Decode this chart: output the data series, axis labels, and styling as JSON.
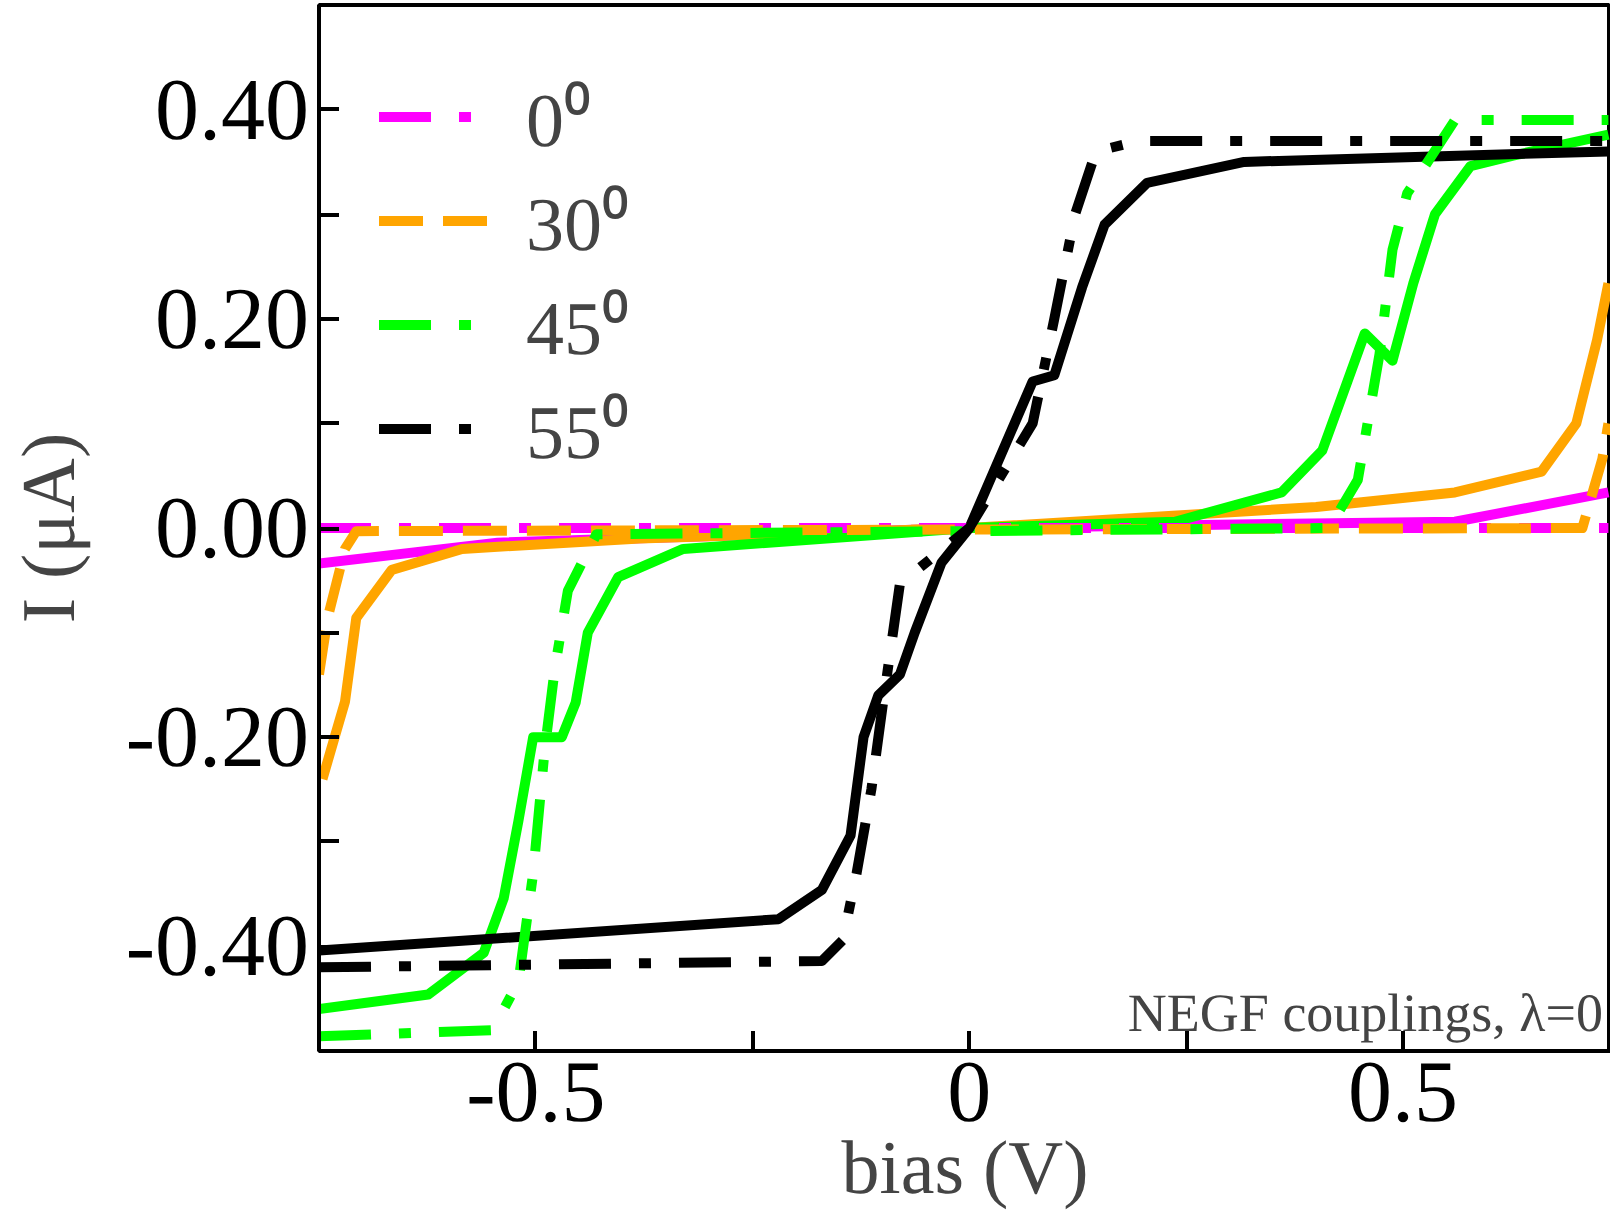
{
  "chart_data": {
    "type": "line",
    "xlabel": "bias (V)",
    "ylabel": "I (μA)",
    "xlim": [
      -0.75,
      0.74
    ],
    "ylim": [
      -0.5,
      0.5
    ],
    "xticks": [
      {
        "value": -0.75,
        "label": null
      },
      -0.5,
      {
        "value": -0.25,
        "label": null
      },
      0,
      {
        "value": 0.25,
        "label": null
      },
      0.5
    ],
    "yticks": [
      {
        "value": -0.4,
        "label": "-0.40"
      },
      {
        "value": -0.3,
        "label": null
      },
      {
        "value": -0.2,
        "label": "-0.20"
      },
      {
        "value": -0.1,
        "label": null
      },
      {
        "value": 0,
        "label": "0.00"
      },
      {
        "value": 0.1,
        "label": null
      },
      {
        "value": 0.2,
        "label": "0.20"
      },
      {
        "value": 0.3,
        "label": null
      },
      {
        "value": 0.4,
        "label": "0.40"
      }
    ],
    "grid": false,
    "legend": "top left",
    "marker": "none",
    "annotations": [
      "NEGF couplings, λ=0"
    ],
    "series": [
      {
        "color": "#ff00ff",
        "line_style": "solid",
        "x": [
          -0.75,
          -0.544,
          0,
          0.56,
          0.737
        ],
        "values": [
          -0.034,
          -0.014,
          0,
          0.006,
          0.034
        ]
      },
      {
        "color": "#ffa500",
        "line_style": "solid",
        "x": [
          -0.746,
          -0.72,
          -0.707,
          -0.666,
          -0.585,
          -0.38,
          0,
          0.4,
          0.56,
          0.66,
          0.7,
          0.724,
          0.737
        ],
        "values": [
          -0.24,
          -0.166,
          -0.086,
          -0.04,
          -0.02,
          -0.01,
          0,
          0.02,
          0.034,
          0.054,
          0.1,
          0.18,
          0.234
        ]
      },
      {
        "color": "#00ff00",
        "line_style": "solid",
        "x": [
          -0.75,
          -0.624,
          -0.56,
          -0.537,
          -0.52,
          -0.503,
          -0.47,
          -0.454,
          -0.44,
          -0.405,
          -0.33,
          0,
          0.237,
          0.36,
          0.407,
          0.436,
          0.456,
          0.488,
          0.512,
          0.537,
          0.578,
          0.627,
          0.737
        ],
        "values": [
          -0.46,
          -0.446,
          -0.406,
          -0.354,
          -0.28,
          -0.2,
          -0.2,
          -0.167,
          -0.1,
          -0.047,
          -0.02,
          0,
          0.006,
          0.034,
          0.074,
          0.14,
          0.186,
          0.16,
          0.234,
          0.3,
          0.346,
          0.356,
          0.376
        ]
      },
      {
        "color": "#000000",
        "line_style": "solid",
        "x": [
          -0.75,
          -0.22,
          -0.17,
          -0.137,
          -0.122,
          -0.105,
          -0.08,
          -0.063,
          -0.032,
          0,
          0.073,
          0.098,
          0.13,
          0.156,
          0.205,
          0.317,
          0.737
        ],
        "values": [
          -0.404,
          -0.374,
          -0.346,
          -0.294,
          -0.2,
          -0.16,
          -0.14,
          -0.1,
          -0.033,
          0,
          0.14,
          0.146,
          0.23,
          0.29,
          0.33,
          0.35,
          0.36
        ]
      },
      {
        "name": "0⁰",
        "color": "#ff00ff",
        "line_style": "dashdot",
        "x": [
          -0.75,
          0.737
        ],
        "values": [
          0,
          0
        ]
      },
      {
        "name": "30⁰",
        "color": "#ffa500",
        "line_style": "dashed",
        "x": [
          -0.75,
          -0.74,
          -0.72,
          -0.707,
          0.707,
          0.73,
          0.737
        ],
        "values": [
          -0.14,
          -0.086,
          -0.02,
          -0.003,
          0,
          0.066,
          0.1
        ]
      },
      {
        "name": "45⁰",
        "color": "#00ff00",
        "line_style": "dashdot",
        "x": [
          -0.75,
          -0.55,
          -0.52,
          -0.503,
          -0.49,
          -0.478,
          -0.463,
          -0.43,
          0.415,
          0.448,
          0.473,
          0.488,
          0.505,
          0.56,
          0.737
        ],
        "values": [
          -0.486,
          -0.48,
          -0.434,
          -0.33,
          -0.214,
          -0.134,
          -0.06,
          -0.006,
          0,
          0.046,
          0.166,
          0.266,
          0.32,
          0.39,
          0.39
        ]
      },
      {
        "name": "55⁰",
        "color": "#000000",
        "line_style": "dashdot",
        "x": [
          -0.75,
          -0.17,
          -0.146,
          -0.13,
          -0.113,
          -0.1,
          -0.08,
          0,
          0.073,
          0.098,
          0.122,
          0.146,
          0.195,
          0.737
        ],
        "values": [
          -0.42,
          -0.414,
          -0.394,
          -0.33,
          -0.25,
          -0.17,
          -0.053,
          0,
          0.1,
          0.2,
          0.3,
          0.36,
          0.37,
          0.37
        ]
      }
    ]
  }
}
